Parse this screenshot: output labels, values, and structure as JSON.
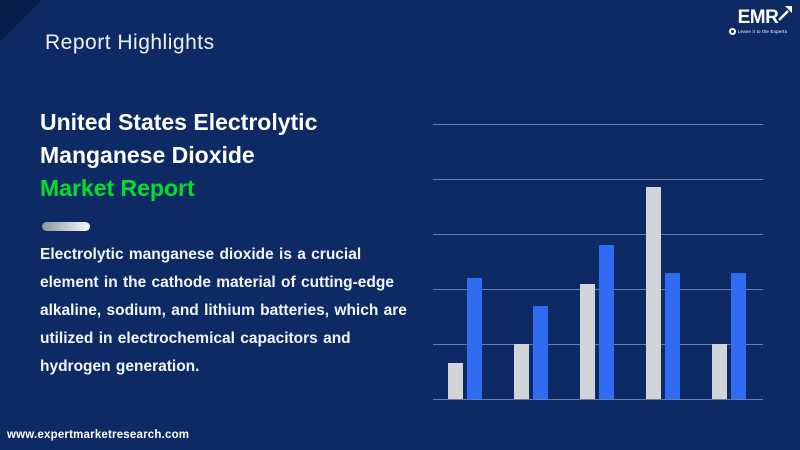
{
  "page": {
    "background_color": "#0d2a64",
    "header": {
      "section_label": "Report Highlights"
    },
    "logo": {
      "text": "EMR",
      "tagline": "Leave it to the Experts"
    },
    "title": {
      "line1": "United States Electrolytic",
      "line2": "Manganese Dioxide",
      "line3": "Market Report",
      "highlight_color": "#00df2e"
    },
    "description": "Electrolytic manganese dioxide is a crucial element in the cathode material of cutting-edge alkaline, sodium, and lithium batteries, which are utilized in electrochemical capacitors and hydrogen generation.",
    "footer": {
      "website": "www.expertmarketresearch.com"
    }
  },
  "chart_data": {
    "type": "bar",
    "title": "",
    "categories": [
      "",
      "",
      "",
      "",
      ""
    ],
    "series": [
      {
        "name": "gray",
        "color": "#d3d4d8",
        "values": [
          0.65,
          1.0,
          2.1,
          3.85,
          1.0
        ]
      },
      {
        "name": "blue",
        "color": "#2f6cf2",
        "values": [
          2.2,
          1.7,
          2.8,
          2.3,
          2.3
        ]
      }
    ],
    "ylim": [
      0,
      5
    ],
    "gridline_count": 6,
    "gridline_color": "rgba(214, 226, 245, 0.45)",
    "legend": "none",
    "axis_tick_labels": "none",
    "grid": "horizontal"
  }
}
